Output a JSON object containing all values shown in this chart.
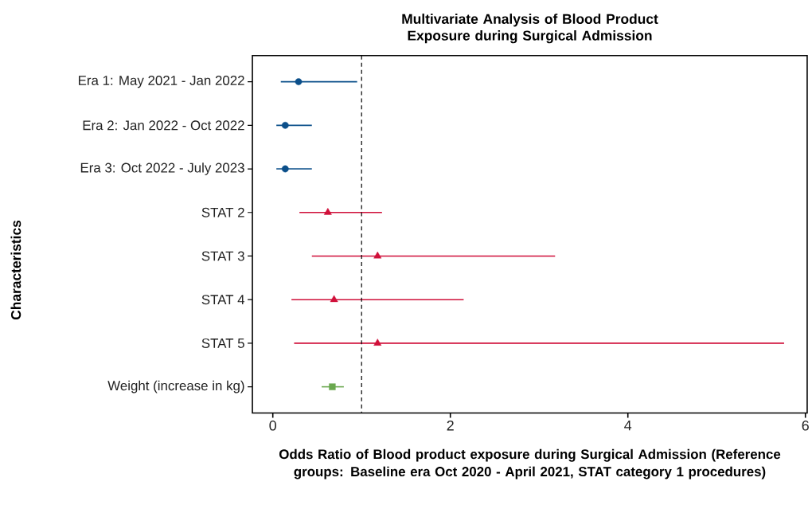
{
  "chart_data": {
    "type": "scatter",
    "orientation": "horizontal",
    "title": "Multivariate Analysis of Blood Product Exposure during Surgical Admission",
    "xlabel": "Odds Ratio of Blood product exposure during Surgical Admission (Reference groups: Baseline era Oct 2020 - April 2021, STAT category 1 procedures)",
    "ylabel": "Characteristics",
    "categories": [
      "Era 1: May 2021 - Jan 2022",
      "Era 2: Jan 2022 - Oct 2022",
      "Era 3: Oct 2022 - July 2023",
      "STAT 2",
      "STAT 3",
      "STAT 4",
      "STAT 5",
      "Weight (increase in kg)"
    ],
    "series": [
      {
        "color": "#0b4f8a",
        "marker": "circle",
        "values": [
          0.29,
          0.14,
          0.14,
          null,
          null,
          null,
          null,
          null
        ],
        "errors": [
          [
            0.09,
            0.95
          ],
          [
            0.04,
            0.44
          ],
          [
            0.04,
            0.44
          ],
          null,
          null,
          null,
          null,
          null
        ]
      },
      {
        "color": "#d0103a",
        "marker": "triangle",
        "values": [
          null,
          null,
          null,
          0.62,
          1.18,
          0.69,
          1.18,
          null
        ],
        "errors": [
          null,
          null,
          null,
          [
            0.3,
            1.23
          ],
          [
            0.44,
            3.18
          ],
          [
            0.21,
            2.15
          ],
          [
            0.24,
            5.76
          ],
          null
        ]
      },
      {
        "color": "#6aa84f",
        "marker": "square",
        "values": [
          null,
          null,
          null,
          null,
          null,
          null,
          null,
          0.67
        ],
        "errors": [
          null,
          null,
          null,
          null,
          null,
          null,
          null,
          [
            0.55,
            0.8
          ]
        ]
      }
    ],
    "xlim": [
      -0.23,
      6.02
    ],
    "xticks": [
      0,
      2,
      4,
      6
    ],
    "ref_lines": [
      {
        "axis": "x",
        "value": 1,
        "color": "#000000",
        "line_style": "dashed"
      }
    ],
    "grid": false
  }
}
